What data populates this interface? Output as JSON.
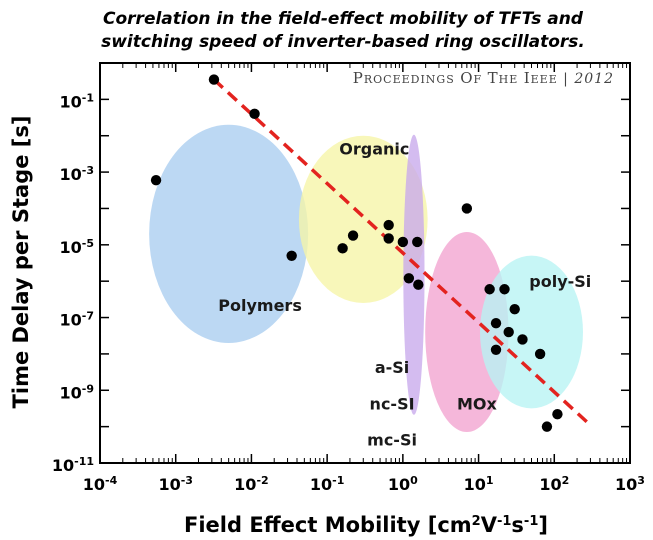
{
  "chart_data": {
    "type": "scatter",
    "title_lines": [
      "Correlation in the field-effect mobility of TFTs and",
      "switching  speed of inverter-based ring oscillators."
    ],
    "journal_label": "Proceedings of the IEEE",
    "journal_year": "2012",
    "xlabel": "Field Effect Mobility [cm²V⁻¹s⁻¹]",
    "ylabel": "Time Delay per Stage [s]",
    "x_scale": "log",
    "y_scale": "log",
    "xlim": [
      0.0001,
      1000
    ],
    "ylim": [
      1e-11,
      1
    ],
    "x_tick_exponents": [
      -4,
      -3,
      -2,
      -1,
      0,
      1,
      2,
      3
    ],
    "y_tick_exponents": [
      -11,
      -9,
      -7,
      -5,
      -3,
      -1
    ],
    "grid": false,
    "regions": [
      {
        "label": "Polymers",
        "color": "#a9cdf0",
        "cx": 0.005,
        "cy": 2e-05,
        "rx_decades": 1.05,
        "ry_decades": 3.0,
        "label_at": [
          0.013,
          1.5e-07
        ]
      },
      {
        "label": "Organic",
        "color": "#f6f5a6",
        "cx": 0.3,
        "cy": 5e-05,
        "rx_decades": 0.85,
        "ry_decades": 2.3,
        "label_at": [
          0.42,
          0.003
        ]
      },
      {
        "label": "a-Si",
        "color": "#c8a9ec",
        "cx": 1.4,
        "cy": 1.5e-06,
        "rx_decades": 0.14,
        "ry_decades": 3.85,
        "label_at": [
          0.72,
          3e-09
        ]
      },
      {
        "label": "nc-SI",
        "color": "#c8a9ec",
        "cx": 1.4,
        "cy": 1.5e-06,
        "rx_decades": 0.14,
        "ry_decades": 3.85,
        "label_at": [
          0.72,
          3e-10
        ]
      },
      {
        "label": "mc-Si",
        "color": "#c8a9ec",
        "cx": 1.4,
        "cy": 1.5e-06,
        "rx_decades": 0.14,
        "ry_decades": 3.85,
        "label_at": [
          0.72,
          3e-11
        ]
      },
      {
        "label": "MOx",
        "color": "#f2a3cf",
        "cx": 7,
        "cy": 4e-08,
        "rx_decades": 0.55,
        "ry_decades": 2.75,
        "label_at": [
          9.5,
          3e-10
        ]
      },
      {
        "label": "poly-Si",
        "color": "#b7f4f4",
        "cx": 50,
        "cy": 4e-08,
        "rx_decades": 0.68,
        "ry_decades": 2.1,
        "label_at": [
          120,
          7e-07
        ]
      }
    ],
    "points": [
      {
        "x": 0.00055,
        "y": 0.0006
      },
      {
        "x": 0.0032,
        "y": 0.35
      },
      {
        "x": 0.011,
        "y": 0.04
      },
      {
        "x": 0.034,
        "y": 5e-06
      },
      {
        "x": 0.16,
        "y": 8e-06
      },
      {
        "x": 0.22,
        "y": 1.8e-05
      },
      {
        "x": 0.65,
        "y": 3.5e-05
      },
      {
        "x": 0.65,
        "y": 1.5e-05
      },
      {
        "x": 1.0,
        "y": 1.2e-05
      },
      {
        "x": 1.55,
        "y": 1.2e-05
      },
      {
        "x": 1.2,
        "y": 1.2e-06
      },
      {
        "x": 1.6,
        "y": 8e-07
      },
      {
        "x": 7.0,
        "y": 0.0001
      },
      {
        "x": 14,
        "y": 6e-07
      },
      {
        "x": 22,
        "y": 6e-07
      },
      {
        "x": 30,
        "y": 1.7e-07
      },
      {
        "x": 17,
        "y": 7e-08
      },
      {
        "x": 25,
        "y": 4e-08
      },
      {
        "x": 17,
        "y": 1.3e-08
      },
      {
        "x": 38,
        "y": 2.5e-08
      },
      {
        "x": 65,
        "y": 1e-08
      },
      {
        "x": 80,
        "y": 1e-10
      },
      {
        "x": 110,
        "y": 2.2e-10
      }
    ],
    "trendline": {
      "style": "dashed",
      "color": "#e3231f",
      "x": [
        0.0032,
        300
      ],
      "y": [
        0.35,
        1.1e-10
      ]
    }
  }
}
